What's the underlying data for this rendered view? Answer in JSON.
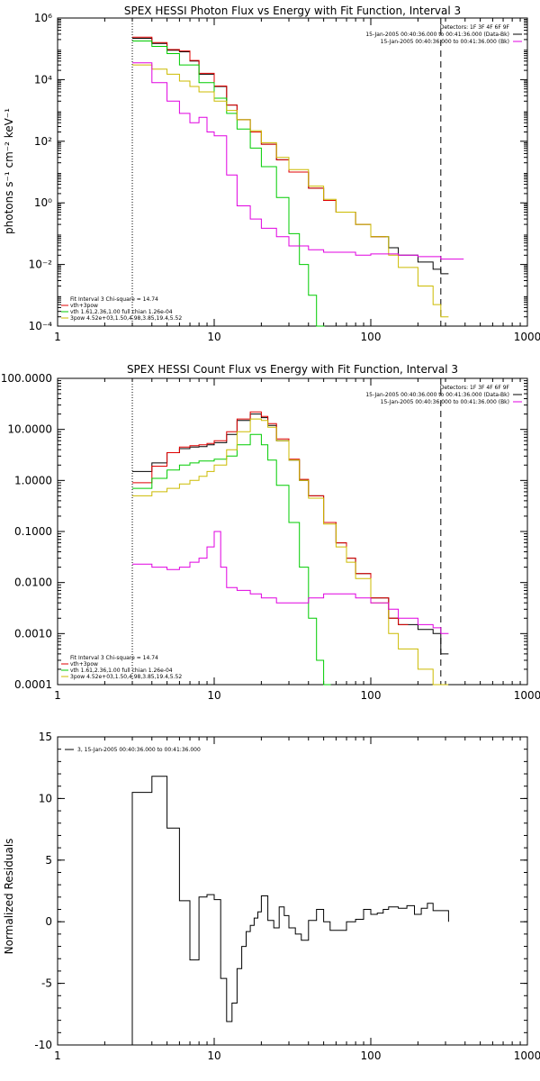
{
  "chart_data": [
    {
      "type": "line",
      "step": true,
      "title": "SPEX HESSI Photon Flux vs Energy with Fit Function, Interval 3",
      "ylabel": "photons s⁻¹ cm⁻² keV⁻¹",
      "xlabel": "",
      "xscale": "log",
      "yscale": "log",
      "xlim": [
        1,
        1000
      ],
      "ylim": [
        0.0001,
        1000000
      ],
      "xticks": [
        1,
        10,
        100,
        1000
      ],
      "xtick_labels": [
        "1",
        "10",
        "100",
        "1000"
      ],
      "yticks": [
        0.0001,
        0.01,
        1,
        100,
        10000,
        1000000
      ],
      "ytick_labels": [
        "10⁻⁴",
        "10⁻²",
        "10⁰",
        "10²",
        "10⁴",
        "10⁶"
      ],
      "fit_range": [
        3,
        280
      ],
      "legend_top_right": [
        {
          "text": "Detectors: 1F 3F 4F 6F 9F",
          "color": "#000000"
        },
        {
          "text": "15-Jan-2005 00:40:36.000 to 00:41:36.000 (Data-Bk)",
          "color": "#000000"
        },
        {
          "text": "15-Jan-2005 00:40:36.000 to 00:41:36.000 (Bk)",
          "color": "#e000e0"
        }
      ],
      "legend_bottom_left": [
        {
          "text": "Fit Interval 3   Chi-square = 14.74",
          "color": "#000000"
        },
        {
          "text": "vth+3pow",
          "color": "#e00000"
        },
        {
          "text": "vth 1.61,2.36,1.00   full chian 1.26e-04",
          "color": "#00cc00"
        },
        {
          "text": "3pow 4.52e+03,1.50,4.98,3.85,19.4,5.52",
          "color": "#ccbb00"
        }
      ],
      "series": [
        {
          "name": "Data-Bk",
          "color": "#000000",
          "x": [
            3,
            4,
            5,
            6,
            7,
            8,
            10,
            12,
            14,
            17,
            20,
            25,
            30,
            40,
            50,
            60,
            80,
            100,
            130,
            150,
            200,
            250,
            280
          ],
          "y": [
            220000,
            150000,
            90000,
            80000,
            40000,
            15000,
            6000,
            1500,
            500,
            200,
            80,
            25,
            10,
            3,
            1.2,
            0.5,
            0.2,
            0.08,
            0.035,
            0.02,
            0.012,
            0.007,
            0.005
          ]
        },
        {
          "name": "vth+3pow",
          "color": "#e00000",
          "x": [
            3,
            4,
            5,
            6,
            7,
            8,
            10,
            12,
            14,
            17,
            20,
            25,
            30,
            40,
            50,
            60,
            80,
            100
          ],
          "y": [
            240000,
            160000,
            95000,
            85000,
            42000,
            16000,
            6200,
            1500,
            500,
            200,
            80,
            25,
            10,
            3,
            1.2,
            0.5,
            0.2,
            0.08
          ]
        },
        {
          "name": "vth",
          "color": "#00cc00",
          "x": [
            3,
            4,
            5,
            6,
            8,
            10,
            12,
            14,
            17,
            20,
            25,
            30,
            35,
            40,
            45
          ],
          "y": [
            180000,
            120000,
            70000,
            30000,
            8000,
            2500,
            800,
            250,
            60,
            15,
            1.5,
            0.1,
            0.01,
            0.001,
            0.0001
          ]
        },
        {
          "name": "3pow",
          "color": "#ccbb00",
          "x": [
            3,
            4,
            5,
            6,
            7,
            8,
            10,
            12,
            14,
            17,
            20,
            25,
            30,
            40,
            50,
            60,
            80,
            100,
            130,
            150,
            200,
            250,
            280
          ],
          "y": [
            30000,
            22000,
            15000,
            9000,
            6000,
            4000,
            2000,
            1000,
            500,
            220,
            90,
            30,
            12,
            3.5,
            1.3,
            0.5,
            0.2,
            0.08,
            0.02,
            0.008,
            0.002,
            0.0005,
            0.0002
          ]
        },
        {
          "name": "Bk",
          "color": "#e000e0",
          "x": [
            3,
            4,
            5,
            6,
            7,
            8,
            9,
            10,
            12,
            14,
            17,
            20,
            25,
            30,
            40,
            50,
            80,
            100,
            150,
            200,
            280
          ],
          "y": [
            35000,
            8000,
            2000,
            800,
            400,
            600,
            200,
            150,
            8,
            0.8,
            0.3,
            0.15,
            0.08,
            0.04,
            0.03,
            0.025,
            0.02,
            0.022,
            0.02,
            0.018,
            0.015
          ]
        }
      ]
    },
    {
      "type": "line",
      "step": true,
      "title": "SPEX HESSI Count Flux vs Energy with Fit Function, Interval 3",
      "xlabel": "",
      "ylabel": "",
      "xscale": "log",
      "yscale": "log",
      "xlim": [
        1,
        1000
      ],
      "ylim": [
        0.0001,
        100
      ],
      "xticks": [
        1,
        10,
        100,
        1000
      ],
      "xtick_labels": [
        "1",
        "10",
        "100",
        "1000"
      ],
      "yticks": [
        0.0001,
        0.001,
        0.01,
        0.1,
        1,
        10,
        100
      ],
      "ytick_labels": [
        "0.0001",
        "0.0010",
        "0.0100",
        "0.1000",
        "1.0000",
        "10.0000",
        "100.0000"
      ],
      "fit_range": [
        3,
        280
      ],
      "legend_top_right": [
        {
          "text": "Detectors: 1F 3F 4F 6F 9F",
          "color": "#000000"
        },
        {
          "text": "15-Jan-2005 00:40:36.000 to 00:41:36.000 (Data-Bk)",
          "color": "#000000"
        },
        {
          "text": "15-Jan-2005 00:40:36.000 to 00:41:36.000 (Bk)",
          "color": "#e000e0"
        }
      ],
      "legend_bottom_left": [
        {
          "text": "Fit Interval 3   Chi-square = 14.74",
          "color": "#000000"
        },
        {
          "text": "vth+3pow",
          "color": "#e00000"
        },
        {
          "text": "vth 1.61,2.36,1.00   full chian 1.26e-04",
          "color": "#00cc00"
        },
        {
          "text": "3pow 4.52e+03,1.50,4.98,3.85,19.4,5.52",
          "color": "#ccbb00"
        }
      ],
      "series": [
        {
          "name": "Data-Bk",
          "color": "#000000",
          "x": [
            3,
            4,
            5,
            6,
            7,
            8,
            9,
            10,
            12,
            14,
            17,
            20,
            22,
            25,
            30,
            35,
            40,
            50,
            60,
            70,
            80,
            100,
            130,
            150,
            200,
            250,
            280
          ],
          "y": [
            1.5,
            2.2,
            3.5,
            4.2,
            4.5,
            4.6,
            5,
            5.5,
            8,
            15,
            20,
            17,
            12,
            6,
            2.5,
            1,
            0.5,
            0.15,
            0.06,
            0.03,
            0.015,
            0.005,
            0.002,
            0.0015,
            0.0012,
            0.001,
            0.0004
          ]
        },
        {
          "name": "vth+3pow",
          "color": "#e00000",
          "x": [
            3,
            4,
            5,
            6,
            7,
            8,
            9,
            10,
            12,
            14,
            17,
            20,
            22,
            25,
            30,
            35,
            40,
            50,
            60,
            70,
            80,
            100,
            130,
            150
          ],
          "y": [
            0.9,
            1.9,
            3.5,
            4.5,
            4.8,
            5,
            5.3,
            6,
            9,
            16,
            22,
            18,
            13,
            6.5,
            2.6,
            1.05,
            0.5,
            0.15,
            0.06,
            0.03,
            0.015,
            0.005,
            0.002,
            0.0015
          ]
        },
        {
          "name": "vth",
          "color": "#00cc00",
          "x": [
            3,
            4,
            5,
            6,
            7,
            8,
            10,
            12,
            14,
            17,
            20,
            22,
            25,
            30,
            35,
            40,
            45,
            50
          ],
          "y": [
            0.7,
            1.1,
            1.6,
            2,
            2.2,
            2.4,
            2.6,
            3,
            5,
            8,
            5,
            2.5,
            0.8,
            0.15,
            0.02,
            0.002,
            0.0003,
            0.0001
          ]
        },
        {
          "name": "3pow",
          "color": "#ccbb00",
          "x": [
            3,
            4,
            5,
            6,
            7,
            8,
            9,
            10,
            12,
            14,
            17,
            20,
            22,
            25,
            30,
            35,
            40,
            50,
            60,
            70,
            80,
            100,
            130,
            150,
            200,
            250
          ],
          "y": [
            0.5,
            0.6,
            0.7,
            0.85,
            1,
            1.2,
            1.5,
            2,
            4,
            9,
            16,
            15,
            11,
            6,
            2.5,
            1,
            0.45,
            0.14,
            0.05,
            0.025,
            0.012,
            0.004,
            0.001,
            0.0005,
            0.0002,
            0.0001
          ]
        },
        {
          "name": "Bk",
          "color": "#e000e0",
          "x": [
            3,
            4,
            5,
            6,
            7,
            8,
            9,
            10,
            11,
            12,
            14,
            17,
            20,
            25,
            30,
            40,
            50,
            60,
            80,
            100,
            130,
            150,
            200,
            250,
            280
          ],
          "y": [
            0.023,
            0.02,
            0.018,
            0.02,
            0.025,
            0.03,
            0.05,
            0.1,
            0.02,
            0.008,
            0.007,
            0.006,
            0.005,
            0.004,
            0.004,
            0.005,
            0.006,
            0.006,
            0.005,
            0.004,
            0.003,
            0.002,
            0.0015,
            0.0013,
            0.001
          ]
        }
      ]
    },
    {
      "type": "line",
      "step": true,
      "title": "",
      "xlabel": "",
      "ylabel": "Normalized Residuals",
      "xscale": "log",
      "yscale": "linear",
      "xlim": [
        1,
        1000
      ],
      "ylim": [
        -10,
        15
      ],
      "xticks": [
        1,
        10,
        100,
        1000
      ],
      "xtick_labels": [
        "1",
        "10",
        "100",
        "1000"
      ],
      "yticks": [
        -10,
        -5,
        0,
        5,
        10,
        15
      ],
      "ytick_labels": [
        "-10",
        "-5",
        "0",
        "5",
        "10",
        "15"
      ],
      "legend_top_left": [
        {
          "text": "3, 15-Jan-2005 00:40:36.000 to 00:41:36.000",
          "color": "#000000"
        }
      ],
      "series": [
        {
          "name": "",
          "color": "#000000",
          "x": [
            3,
            4,
            5,
            6,
            7,
            8,
            9,
            10,
            11,
            12,
            13,
            14,
            15,
            16,
            17,
            18,
            19,
            20,
            22,
            24,
            26,
            28,
            30,
            33,
            36,
            40,
            45,
            50,
            55,
            60,
            70,
            80,
            90,
            100,
            110,
            120,
            130,
            150,
            170,
            190,
            210,
            230,
            250,
            280
          ],
          "y": [
            10.5,
            11.8,
            7.6,
            1.7,
            -3.1,
            2.0,
            2.2,
            1.8,
            -4.6,
            -8.1,
            -6.6,
            -3.8,
            -2.0,
            -0.8,
            -0.3,
            0.3,
            0.8,
            2.1,
            0.1,
            -0.5,
            1.2,
            0.5,
            -0.5,
            -1.0,
            -1.5,
            0.1,
            1.0,
            0.0,
            -0.7,
            -0.7,
            0.0,
            0.2,
            1.0,
            0.6,
            0.7,
            1.0,
            1.2,
            1.1,
            1.3,
            0.6,
            1.1,
            1.5,
            0.9,
            0.9
          ]
        }
      ]
    }
  ]
}
